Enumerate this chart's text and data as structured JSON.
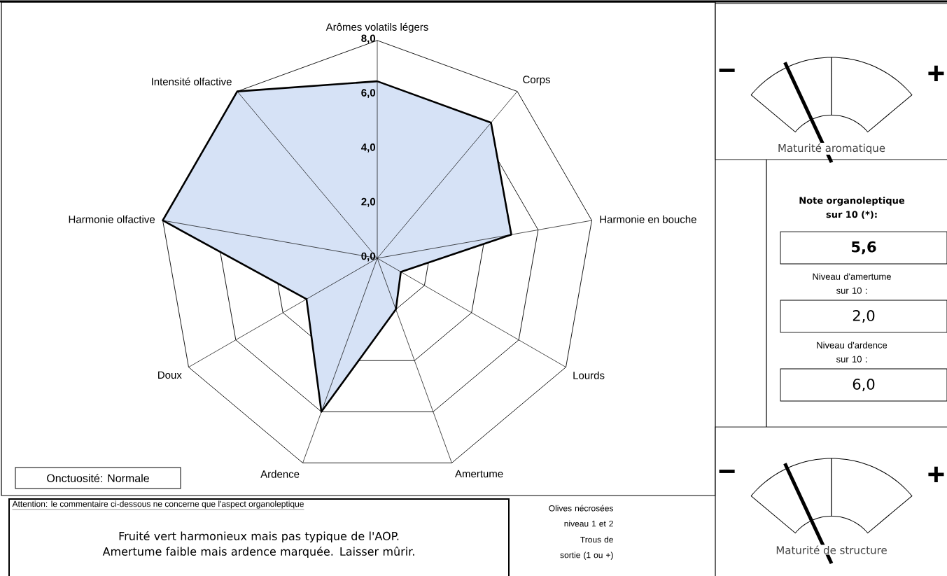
{
  "chart_data": [
    {
      "type": "radar",
      "categories": [
        "Arômes volatils légers",
        "Corps",
        "Harmonie en bouche",
        "Lourds",
        "Amertume",
        "Ardence",
        "Doux",
        "Harmonie olfactive",
        "Intensité olfactive"
      ],
      "series": [
        {
          "color": "#000000",
          "values": [
            6.5,
            6.5,
            5.0,
            1.0,
            2.0,
            6.0,
            3.0,
            8.0,
            8.0
          ]
        }
      ],
      "ylim": [
        0,
        8
      ],
      "yticks": [
        {
          "value": 0,
          "label": "0,0"
        },
        {
          "value": 2,
          "label": "2,0"
        },
        {
          "value": 4,
          "label": "4,0"
        },
        {
          "value": 6,
          "label": "6,0"
        },
        {
          "value": 8,
          "label": "8,0"
        }
      ],
      "grid": true,
      "marker": "none",
      "annotations": [
        "Onctuosité: Normale"
      ]
    },
    {
      "type": "donut",
      "title": "Maturité aromatique",
      "categories": [
        "−",
        "+"
      ],
      "values": [
        50,
        50
      ],
      "colors": [
        "#ffffff",
        "#ffffff"
      ],
      "needle": "−"
    },
    {
      "type": "other",
      "title": "Note organoleptique sur 10 (*):",
      "annotations": [
        "5,6",
        "Niveau d'amertume sur 10 :",
        "2,0",
        "Niveau d'ardence sur 10 :",
        "6,0"
      ]
    },
    {
      "type": "donut",
      "title": "Maturité de structure",
      "categories": [
        "−",
        "+"
      ],
      "values": [
        50,
        50
      ],
      "colors": [
        "#ffffff",
        "#ffffff"
      ],
      "needle": "−"
    },
    {
      "type": "other",
      "title": "Attention: le commentaire ci-dessous ne concerne que l'aspect organoleptique",
      "annotations": [
        "Fruité vert harmonieux mais pas typique de l'AOP. Amertume faible mais ardence marquée. Laisser mûrir.",
        "Olives nécrosées niveau 1 et 2",
        "Trous de sortie (1 ou +)"
      ]
    }
  ]
}
